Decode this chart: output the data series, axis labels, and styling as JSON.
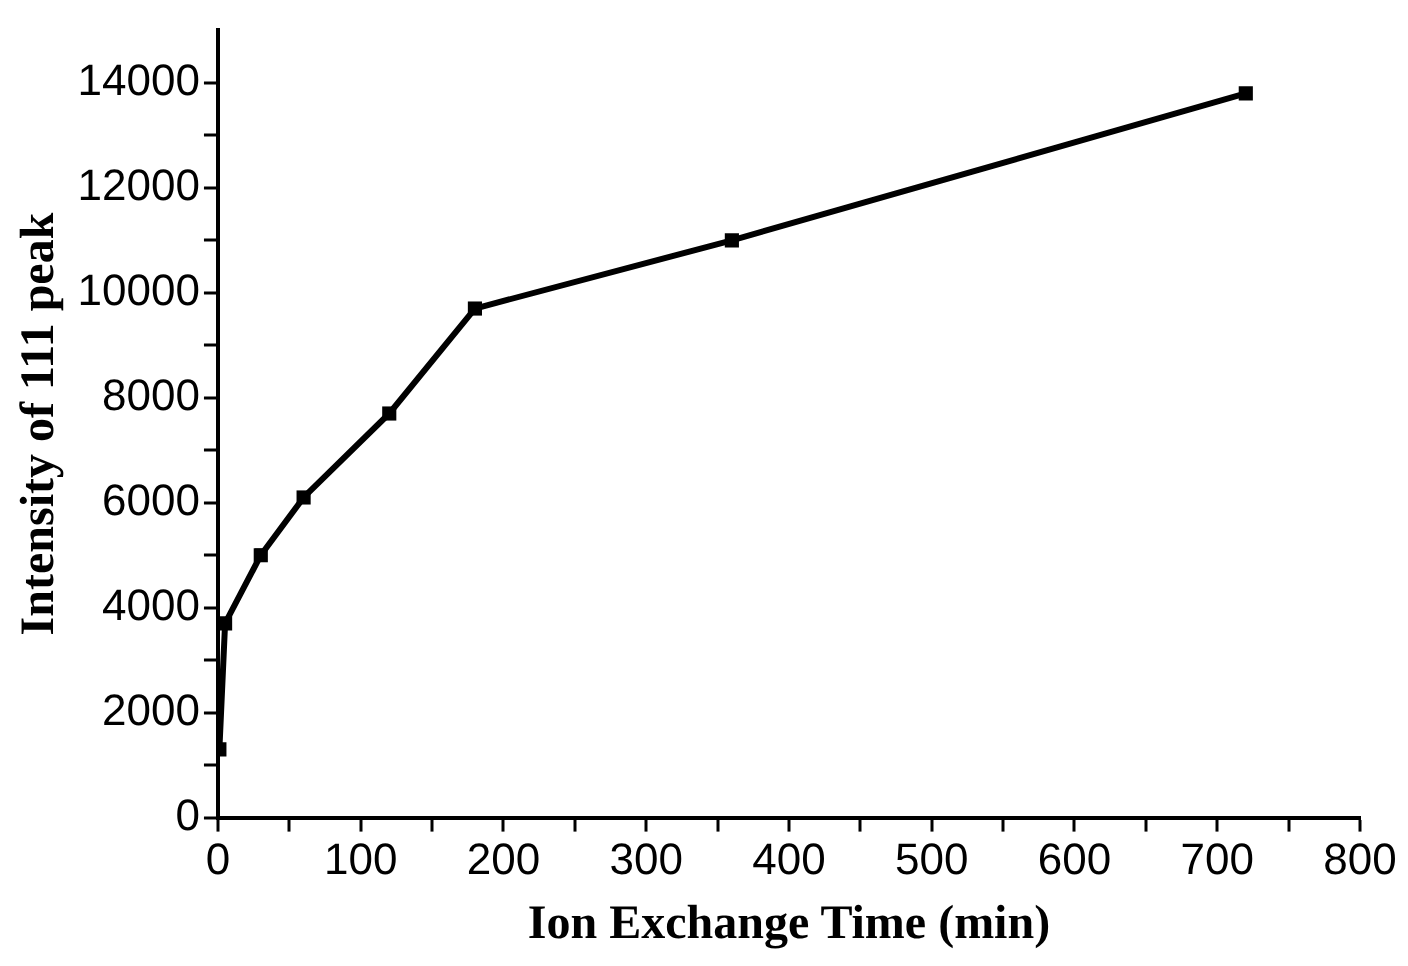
{
  "chart_data": {
    "type": "line",
    "xlabel": "Ion Exchange Time (min)",
    "ylabel": "Intensity of 111 peak",
    "x": [
      1,
      5,
      30,
      60,
      120,
      180,
      360,
      720
    ],
    "series": [
      {
        "color": "#000000",
        "values": [
          1300,
          3700,
          5000,
          6100,
          7700,
          9700,
          11000,
          13800
        ]
      }
    ],
    "xlim": [
      0,
      800
    ],
    "xticks": [
      0,
      {
        "value": 50,
        "label": null
      },
      100,
      {
        "value": 150,
        "label": null
      },
      200,
      {
        "value": 250,
        "label": null
      },
      300,
      {
        "value": 350,
        "label": null
      },
      400,
      {
        "value": 450,
        "label": null
      },
      500,
      {
        "value": 550,
        "label": null
      },
      600,
      {
        "value": 650,
        "label": null
      },
      700,
      {
        "value": 750,
        "label": null
      },
      800
    ],
    "ylim": [
      0,
      15000
    ],
    "yticks": [
      0,
      {
        "value": 1000,
        "label": null
      },
      2000,
      {
        "value": 3000,
        "label": null
      },
      4000,
      {
        "value": 5000,
        "label": null
      },
      6000,
      {
        "value": 7000,
        "label": null
      },
      8000,
      {
        "value": 9000,
        "label": null
      },
      10000,
      {
        "value": 11000,
        "label": null
      },
      12000,
      {
        "value": 13000,
        "label": null
      },
      14000
    ],
    "grid": false,
    "legend": false,
    "marker": "square",
    "line_style": "solid"
  }
}
